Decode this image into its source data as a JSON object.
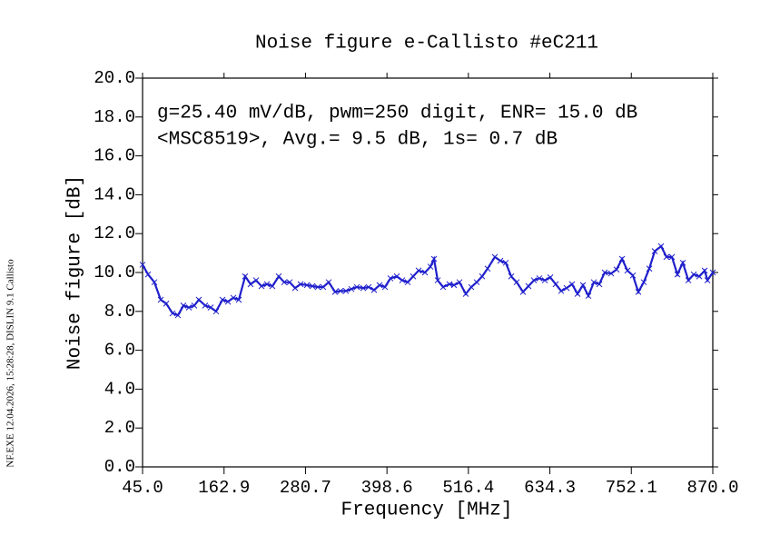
{
  "chart_data": {
    "type": "line",
    "title": "Noise figure e-Callisto #eC211",
    "annotations": [
      "g=25.40 mV/dB, pwm=250 digit, ENR= 15.0 dB",
      "<MSC8519>, Avg.= 9.5 dB, 1s= 0.7 dB"
    ],
    "side_note": "NF.EXE 12.04.2026, 15:28:28, DISLIN 9.1 Callisto",
    "x_label": "Frequency [MHz]",
    "y_label": "Noise figure [dB]",
    "xlim": [
      45,
      870
    ],
    "ylim": [
      0,
      20
    ],
    "xticks": [
      {
        "value": 45,
        "label": "45.0"
      },
      162.9,
      280.7,
      398.6,
      516.4,
      634.3,
      752.1,
      {
        "value": 870,
        "label": "870.0"
      }
    ],
    "yticks": [
      {
        "value": 0,
        "label": "0.0"
      },
      {
        "value": 2,
        "label": "2.0"
      },
      {
        "value": 4,
        "label": "4.0"
      },
      {
        "value": 6,
        "label": "6.0"
      },
      {
        "value": 8,
        "label": "8.0"
      },
      {
        "value": 10,
        "label": "10.0"
      },
      {
        "value": 12,
        "label": "12.0"
      },
      {
        "value": 14,
        "label": "14.0"
      },
      {
        "value": 16,
        "label": "16.0"
      },
      {
        "value": 18,
        "label": "18.0"
      },
      {
        "value": 20,
        "label": "20.0"
      }
    ],
    "grid": false,
    "series": [
      {
        "color": "#2020cc",
        "x": [
          45.0,
          52.9,
          62.1,
          71.3,
          79.2,
          88.4,
          96.2,
          104.1,
          112.0,
          119.8,
          126.4,
          135.6,
          143.5,
          151.4,
          160.6,
          168.5,
          176.4,
          184.2,
          193.4,
          201.3,
          209.2,
          217.1,
          224.9,
          232.8,
          242.0,
          249.9,
          257.8,
          265.7,
          273.6,
          282.8,
          290.7,
          298.5,
          306.4,
          314.3,
          323.5,
          331.4,
          339.3,
          347.2,
          355.0,
          364.2,
          372.1,
          380.0,
          387.9,
          395.8,
          403.6,
          412.8,
          420.7,
          428.6,
          436.5,
          444.4,
          453.6,
          461.5,
          466.7,
          472.0,
          479.8,
          489.0,
          495.6,
          503.5,
          512.7,
          520.6,
          528.4,
          536.3,
          544.2,
          554.7,
          562.6,
          570.5,
          578.4,
          586.2,
          595.4,
          603.3,
          611.2,
          619.1,
          627.0,
          634.9,
          642.7,
          650.6,
          658.5,
          666.4,
          674.3,
          682.2,
          690.0,
          697.9,
          705.8,
          713.7,
          722.9,
          730.8,
          738.7,
          746.5,
          754.4,
          762.3,
          770.2,
          778.1,
          786.0,
          795.2,
          803.0,
          810.9,
          818.8,
          826.7,
          834.6,
          842.5,
          850.4,
          858.3,
          862.2,
          870.0
        ],
        "values": [
          10.4,
          9.9,
          9.5,
          8.6,
          8.4,
          7.9,
          7.8,
          8.3,
          8.2,
          8.3,
          8.6,
          8.3,
          8.2,
          8.0,
          8.6,
          8.5,
          8.7,
          8.6,
          9.8,
          9.4,
          9.6,
          9.3,
          9.4,
          9.3,
          9.8,
          9.5,
          9.5,
          9.2,
          9.4,
          9.35,
          9.3,
          9.25,
          9.25,
          9.5,
          9.0,
          9.05,
          9.05,
          9.15,
          9.25,
          9.2,
          9.25,
          9.1,
          9.35,
          9.25,
          9.7,
          9.8,
          9.6,
          9.5,
          9.8,
          10.1,
          10.0,
          10.3,
          10.7,
          9.6,
          9.25,
          9.4,
          9.35,
          9.5,
          8.9,
          9.25,
          9.5,
          9.8,
          10.2,
          10.8,
          10.6,
          10.5,
          9.8,
          9.5,
          9.0,
          9.3,
          9.6,
          9.7,
          9.6,
          9.75,
          9.4,
          9.05,
          9.2,
          9.4,
          8.9,
          9.35,
          8.8,
          9.5,
          9.4,
          10.0,
          9.95,
          10.15,
          10.7,
          10.1,
          9.85,
          9.0,
          9.5,
          10.2,
          11.1,
          11.35,
          10.8,
          10.8,
          9.9,
          10.5,
          9.6,
          9.9,
          9.8,
          10.1,
          9.6,
          10.0
        ]
      }
    ]
  }
}
